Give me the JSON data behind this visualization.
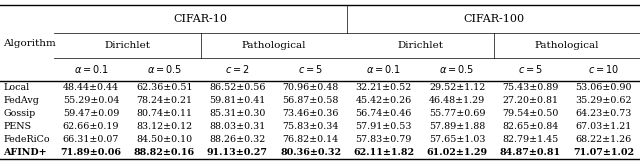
{
  "algorithms": [
    "Local",
    "FedAvg",
    "Gossip",
    "PENS",
    "FedeRiCo",
    "AFIND+"
  ],
  "cifar10_dirichlet_01": [
    "48.44±0.44",
    "55.29±0.04",
    "59.47±0.09",
    "62.66±0.19",
    "66.31±0.07",
    "71.89±0.06"
  ],
  "cifar10_dirichlet_05": [
    "62.36±0.51",
    "78.24±0.21",
    "80.74±0.11",
    "83.12±0.12",
    "84.50±0.10",
    "88.82±0.16"
  ],
  "cifar10_path_c2": [
    "86.52±0.56",
    "59.81±0.41",
    "85.31±0.30",
    "88.03±0.31",
    "88.26±0.32",
    "91.13±0.27"
  ],
  "cifar10_path_c5": [
    "70.96±0.48",
    "56.87±0.58",
    "73.46±0.36",
    "75.83±0.34",
    "76.82±0.14",
    "80.36±0.32"
  ],
  "cifar100_dirichlet_01": [
    "32.21±0.52",
    "45.42±0.26",
    "56.74±0.46",
    "57.91±0.53",
    "57.83±0.79",
    "62.11±1.82"
  ],
  "cifar100_dirichlet_05": [
    "29.52±1.12",
    "46.48±1.29",
    "55.77±0.69",
    "57.89±1.88",
    "57.65±1.03",
    "61.02±1.29"
  ],
  "cifar100_path_c5": [
    "75.43±0.89",
    "27.20±0.81",
    "79.54±0.50",
    "82.65±0.84",
    "82.79±1.45",
    "84.87±0.81"
  ],
  "cifar100_path_c10": [
    "53.06±0.90",
    "35.29±0.62",
    "64.23±0.73",
    "67.03±1.21",
    "68.22±1.26",
    "71.07±1.02"
  ],
  "bold_row": 5,
  "col_headers_level3": [
    "α = 0.1",
    "α = 0.5",
    "c = 2",
    "c = 5",
    "α = 0.1",
    "α = 0.5",
    "c = 5",
    "c = 10"
  ],
  "bg_color": "#ffffff",
  "lw_thick": 1.0,
  "lw_thin": 0.5,
  "fs_l1": 8.0,
  "fs_l2": 7.5,
  "fs_l3": 7.0,
  "fs_cell": 6.8,
  "fs_algo_header": 7.5
}
